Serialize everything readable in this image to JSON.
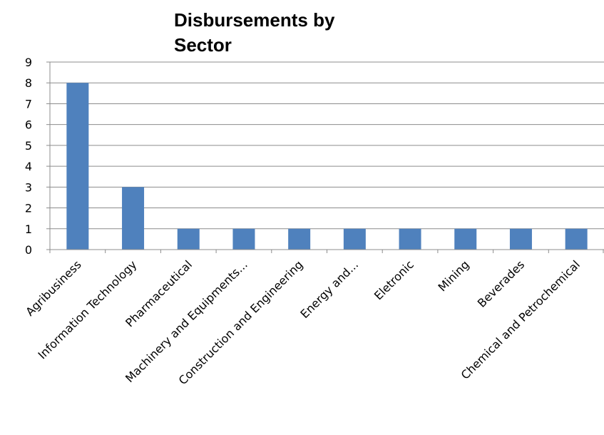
{
  "chart_data": {
    "type": "bar",
    "title_lines": [
      "Disbursements by",
      "Sector"
    ],
    "categories": [
      "Agribusiness",
      "Information Technology",
      "Pharmaceutical",
      "Machinery and Equipments...",
      "Construction and Engineering",
      "Energy and...",
      "Eletronic",
      "Mining",
      "Beverades",
      "Chemical and Petrochemical"
    ],
    "values": [
      8,
      3,
      1,
      1,
      1,
      1,
      1,
      1,
      1,
      1
    ],
    "ylim": [
      0,
      9
    ],
    "yticks": [
      "0",
      "1",
      "2",
      "3",
      "4",
      "5",
      "6",
      "7",
      "8",
      "9"
    ],
    "grid": true,
    "legend": "none",
    "bar_color": "#4f81bd"
  }
}
